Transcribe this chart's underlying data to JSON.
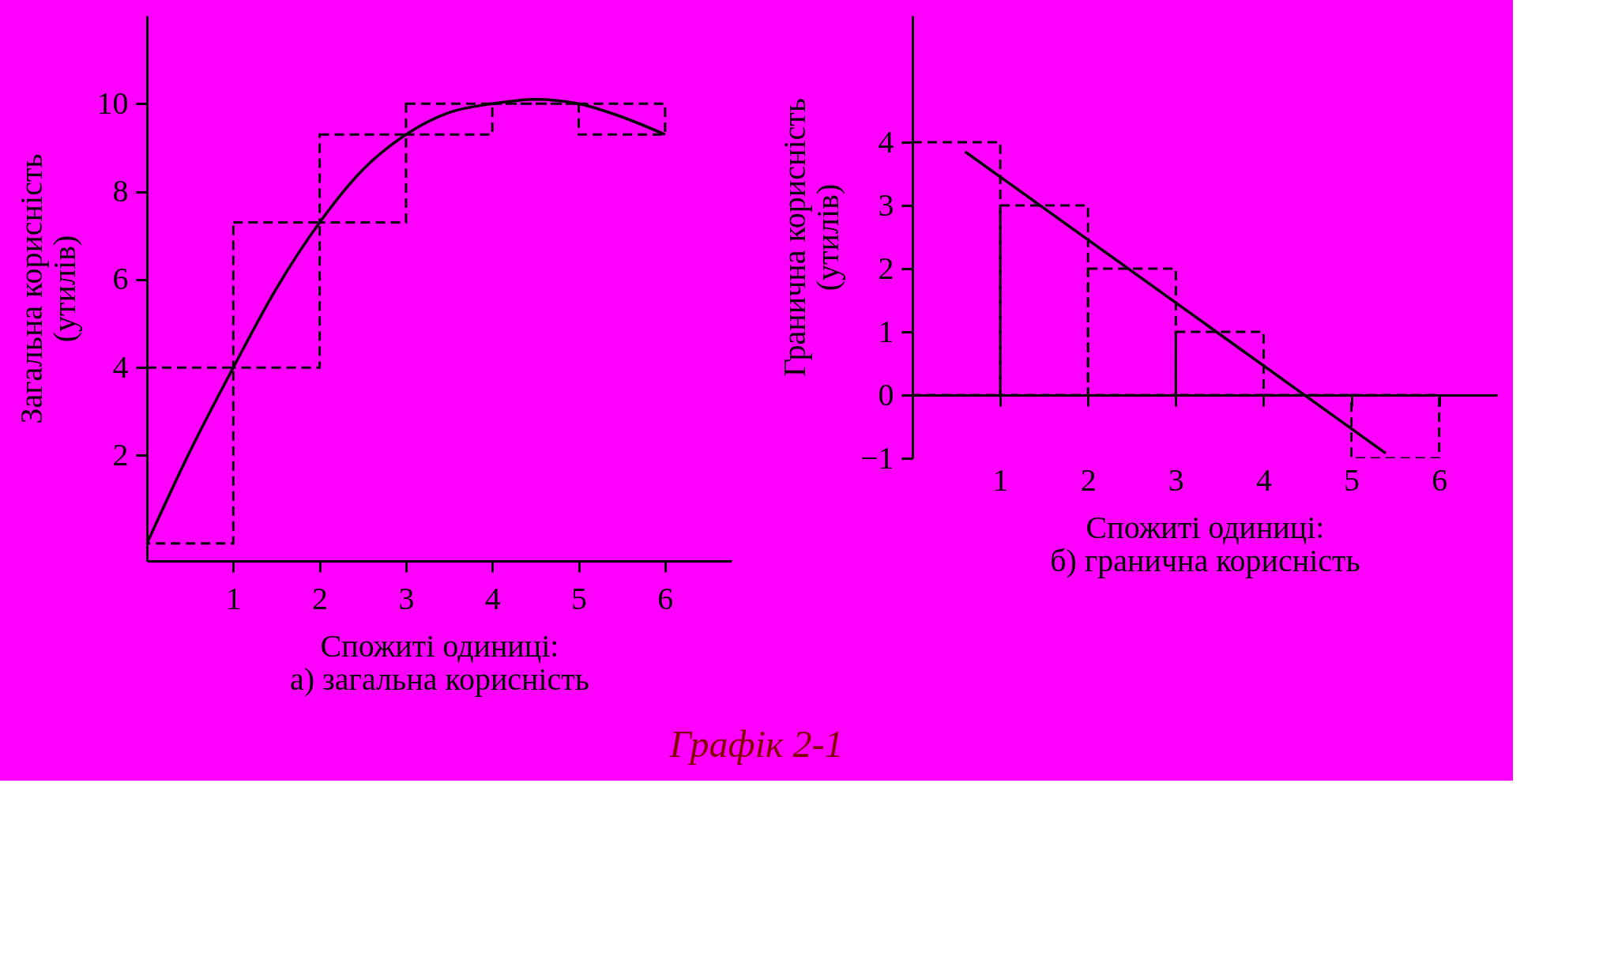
{
  "chart_data": [
    {
      "type": "bar",
      "xlabel": "Спожиті одиниці:\nа) загальна корисність",
      "ylabel": "Загальна корисність\n(утилів)",
      "xlim": [
        0,
        6.77
      ],
      "xticks": [
        1,
        2,
        3,
        4,
        5,
        6
      ],
      "ylim": [
        -0.4,
        12
      ],
      "yticks": [
        2,
        4,
        6,
        8,
        10
      ],
      "grid": false,
      "series": [
        {
          "x": [
            0.5,
            1.5,
            2.5,
            3.5,
            4.5,
            5.5
          ],
          "base": [
            0,
            4,
            7.3,
            9.3,
            10,
            10
          ],
          "values": [
            4,
            3.3,
            2,
            0.7,
            0,
            -0.7
          ],
          "color": "#000000",
          "line_style": "dashed"
        },
        {
          "type": "line",
          "x": [
            0,
            0.5,
            1,
            1.5,
            2,
            2.5,
            3,
            3.5,
            4,
            4.5,
            5,
            5.5,
            6
          ],
          "values": [
            0,
            2.1,
            4,
            5.8,
            7.3,
            8.5,
            9.3,
            9.8,
            10,
            10.1,
            10,
            9.7,
            9.3
          ],
          "color": "#000000",
          "line_style": "solid"
        }
      ]
    },
    {
      "type": "bar",
      "xlabel": "Спожиті одиниці:\nб) гранична корисність",
      "ylabel": "Гранична корисність\n(утилів)",
      "xlim": [
        0,
        6.66
      ],
      "xticks": [
        1,
        2,
        3,
        4,
        5,
        6
      ],
      "ylim": [
        -1,
        6
      ],
      "yticks": [
        -1,
        0,
        1,
        2,
        3,
        4
      ],
      "grid": false,
      "annotations": [
        "Графік 2-1"
      ],
      "series": [
        {
          "x": [
            0.5,
            1.5,
            2.5,
            3.5,
            4.5,
            5.5
          ],
          "values": [
            4,
            3,
            2,
            1,
            0,
            -1
          ],
          "color": "#000000",
          "line_style": "dashed"
        },
        {
          "type": "line",
          "x": [
            0.6,
            5.39
          ],
          "values": [
            3.85,
            -0.92
          ],
          "color": "#000000",
          "line_style": "solid"
        }
      ]
    }
  ]
}
